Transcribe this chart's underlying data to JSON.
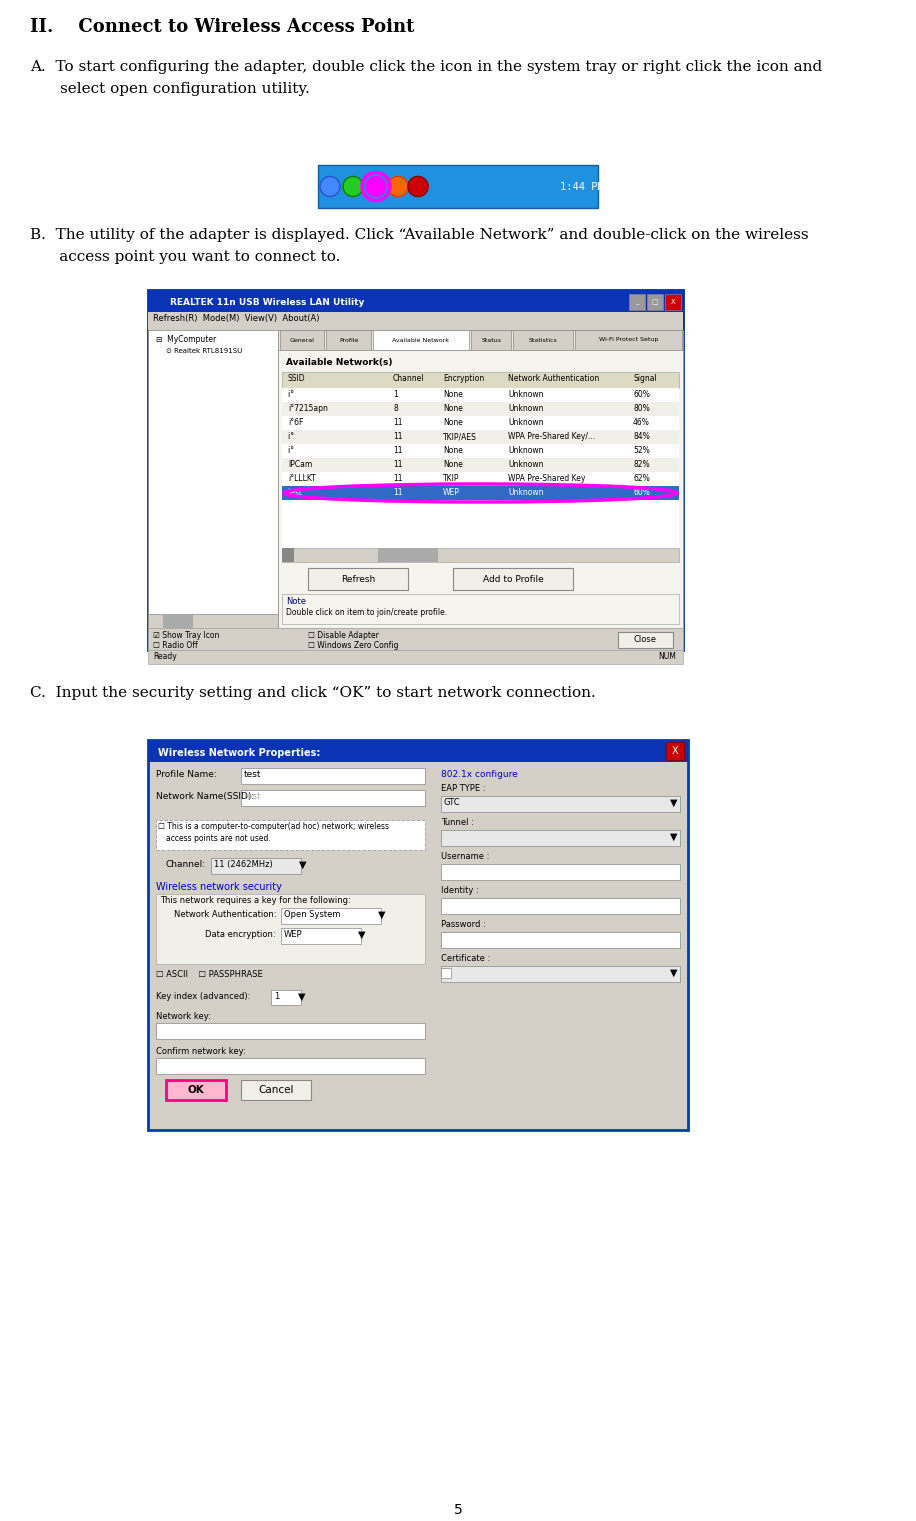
{
  "title": "II.    Connect to Wireless Access Point",
  "section_a": "A.  To start configuring the adapter, double click the icon in the system tray or right click the icon and\n      select open configuration utility.",
  "section_b_line1": "B.  The utility of the adapter is displayed. Click “Available Network” and double-click on the wireless",
  "section_b_line2": "      access point you want to connect to.",
  "section_c": "C.  Input the security setting and click “OK” to start network connection.",
  "page_number": "5",
  "bg_color": "#ffffff",
  "text_color": "#000000"
}
